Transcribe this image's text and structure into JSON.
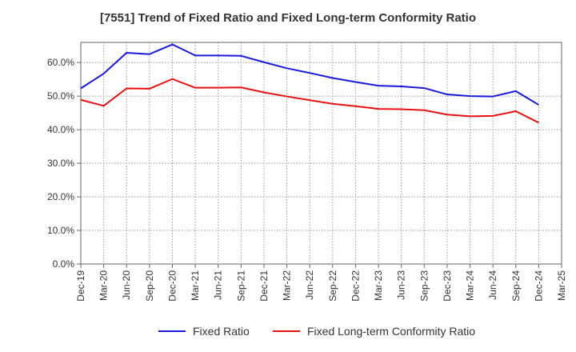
{
  "chart_data": {
    "type": "line",
    "title": "[7551]  Trend of Fixed Ratio and Fixed Long-term Conformity Ratio",
    "xlabel": "",
    "ylabel": "",
    "x": [
      "Dec-19",
      "Mar-20",
      "Jun-20",
      "Sep-20",
      "Dec-20",
      "Mar-21",
      "Jun-21",
      "Sep-21",
      "Dec-21",
      "Mar-22",
      "Jun-22",
      "Sep-22",
      "Dec-22",
      "Mar-23",
      "Jun-23",
      "Sep-23",
      "Dec-23",
      "Mar-24",
      "Jun-24",
      "Sep-24",
      "Dec-24",
      "Mar-25"
    ],
    "ylim": [
      0,
      66
    ],
    "yticks": [
      0,
      10,
      20,
      30,
      40,
      50,
      60
    ],
    "ytick_labels": [
      "0.0%",
      "10.0%",
      "20.0%",
      "30.0%",
      "40.0%",
      "50.0%",
      "60.0%"
    ],
    "grid": true,
    "legend_position": "bottom",
    "series": [
      {
        "name": "Fixed Ratio",
        "color": "#1a1adc",
        "values": [
          52.3,
          56.7,
          62.9,
          62.5,
          65.4,
          62.1,
          62.1,
          62.0,
          60.1,
          58.3,
          56.9,
          55.4,
          54.2,
          53.1,
          52.9,
          52.4,
          50.5,
          50.0,
          49.9,
          51.5,
          47.4,
          null
        ]
      },
      {
        "name": "Fixed Long-term Conformity Ratio",
        "color": "#e81010",
        "values": [
          48.9,
          47.1,
          52.3,
          52.2,
          55.1,
          52.5,
          52.5,
          52.6,
          51.1,
          49.9,
          48.8,
          47.7,
          47.0,
          46.2,
          46.1,
          45.8,
          44.5,
          44.0,
          44.1,
          45.5,
          42.1,
          null
        ]
      }
    ]
  }
}
